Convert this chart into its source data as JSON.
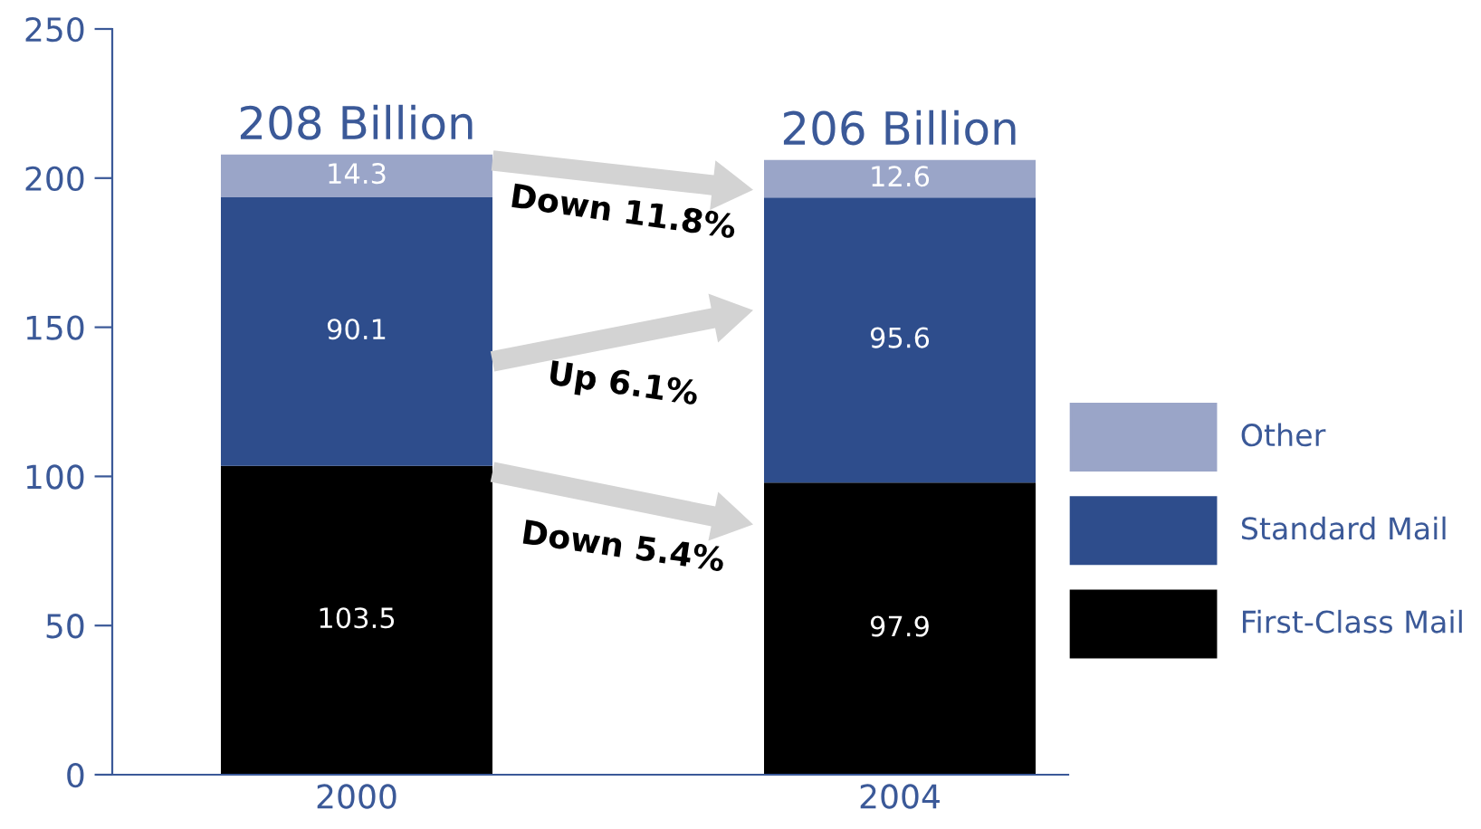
{
  "chart_data": {
    "type": "bar",
    "stacked": true,
    "categories": [
      "2000",
      "2004"
    ],
    "series": [
      {
        "name": "First-Class Mail",
        "color": "#000000",
        "values": [
          103.5,
          97.9
        ]
      },
      {
        "name": "Standard Mail",
        "color": "#2e4d8c",
        "values": [
          90.1,
          95.6
        ]
      },
      {
        "name": "Other",
        "color": "#9aa5c8",
        "values": [
          14.3,
          12.6
        ]
      }
    ],
    "data_labels": true,
    "totals": [
      "208 Billion",
      "206 Billion"
    ],
    "annotations": [
      "Down 5.4%",
      "Up 6.1%",
      "Down 11.8%"
    ],
    "ylim": [
      0,
      250
    ],
    "yticks": [
      0,
      50,
      100,
      150,
      200,
      250
    ],
    "grid": false,
    "legend": "right"
  }
}
